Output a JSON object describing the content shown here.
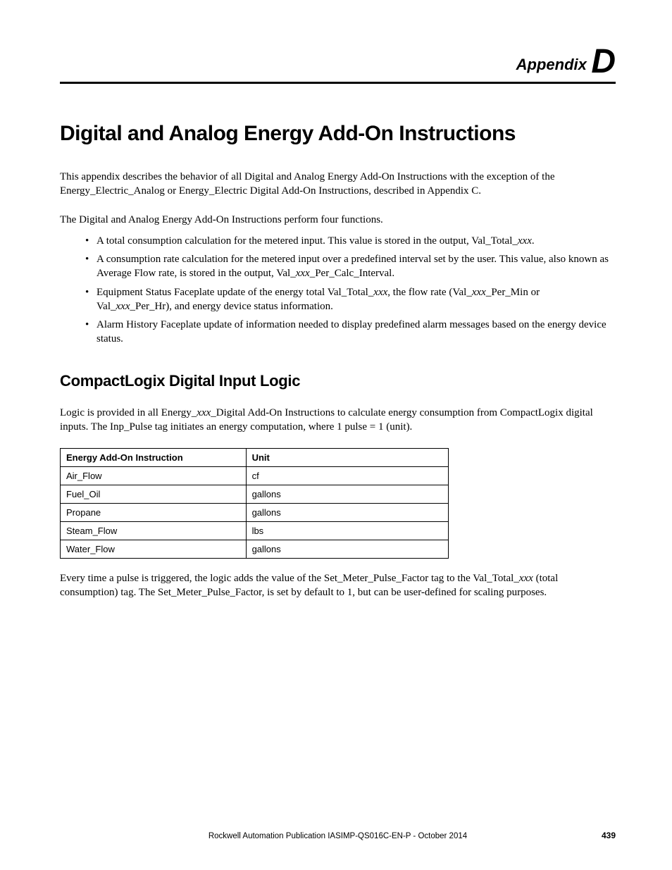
{
  "header": {
    "appendix_word": "Appendix",
    "appendix_letter": "D"
  },
  "title": "Digital and Analog Energy Add-On Instructions",
  "intro_para": "This appendix describes the behavior of all Digital and Analog Energy Add-On Instructions with the exception of the Energy_Electric_Analog or Energy_Electric Digital Add-On Instructions, described in Appendix C.",
  "functions_intro": "The Digital and Analog Energy Add-On Instructions perform four functions.",
  "bullets": [
    {
      "pre": "A total consumption calculation for the metered input. This value is stored in the output, Val_Total_",
      "ital": "xxx",
      "post": "."
    },
    {
      "pre": "A consumption rate calculation for the metered input over a predefined interval set by the user. This value, also known as Average Flow rate, is stored in the output, Val_",
      "ital": "xxx",
      "post": "_Per_Calc_Interval."
    },
    {
      "segments": [
        {
          "t": "Equipment Status Faceplate update of the energy total Val_Total_",
          "i": false
        },
        {
          "t": "xxx",
          "i": true
        },
        {
          "t": ", the flow rate (Val_",
          "i": false
        },
        {
          "t": "xxx",
          "i": true
        },
        {
          "t": "_Per_Min or Val_",
          "i": false
        },
        {
          "t": "xxx",
          "i": true
        },
        {
          "t": "_Per_Hr), and energy device status information.",
          "i": false
        }
      ]
    },
    {
      "pre": "Alarm History Faceplate update of information needed to display predefined alarm messages based on the energy device status.",
      "ital": "",
      "post": ""
    }
  ],
  "section2": {
    "heading": "CompactLogix Digital Input Logic",
    "para_segments": [
      {
        "t": "Logic is provided in all Energy_",
        "i": false
      },
      {
        "t": "xxx",
        "i": true
      },
      {
        "t": "_Digital Add-On Instructions to calculate energy consumption from CompactLogix digital inputs. The Inp_Pulse tag initiates an energy computation, where 1 pulse = 1 (unit).",
        "i": false
      }
    ],
    "table": {
      "columns": [
        "Energy Add-On Instruction",
        "Unit"
      ],
      "rows": [
        [
          "Air_Flow",
          "cf"
        ],
        [
          "Fuel_Oil",
          "gallons"
        ],
        [
          "Propane",
          "gallons"
        ],
        [
          "Steam_Flow",
          "lbs"
        ],
        [
          "Water_Flow",
          "gallons"
        ]
      ]
    },
    "closing_segments": [
      {
        "t": "Every time a pulse is triggered, the logic adds the value of the Set_Meter_Pulse_Factor tag to the Val_Total_",
        "i": false
      },
      {
        "t": "xxx",
        "i": true
      },
      {
        "t": " (total consumption) tag. The Set_Meter_Pulse_Factor, is set by default to 1, but can be user-defined for scaling purposes.",
        "i": false
      }
    ]
  },
  "footer": {
    "text": "Rockwell Automation Publication IASIMP-QS016C-EN-P - October 2014",
    "page": "439"
  }
}
